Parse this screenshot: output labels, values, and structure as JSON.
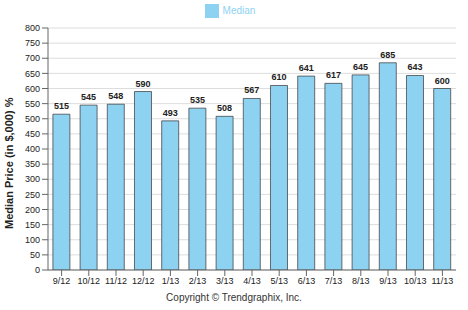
{
  "chart_data": {
    "type": "bar",
    "y_label": "Median Price (in $,000) %",
    "annotation": "Copyright © Trendgraphix, Inc.",
    "categories": [
      "9/12",
      "10/12",
      "11/12",
      "12/12",
      "1/13",
      "2/13",
      "3/13",
      "4/13",
      "5/13",
      "6/13",
      "7/13",
      "8/13",
      "9/13",
      "10/13",
      "11/13"
    ],
    "series": [
      {
        "name": "Median",
        "color": "#8ed2f2",
        "values": [
          515,
          545,
          548,
          590,
          493,
          535,
          508,
          567,
          610,
          641,
          617,
          645,
          685,
          643,
          600
        ]
      }
    ],
    "ylim": [
      0,
      800
    ],
    "yticks": [
      0,
      50,
      100,
      150,
      200,
      250,
      300,
      350,
      400,
      450,
      500,
      550,
      600,
      650,
      700,
      750,
      800
    ],
    "grid": true,
    "legend": "top",
    "data_labels": true
  }
}
